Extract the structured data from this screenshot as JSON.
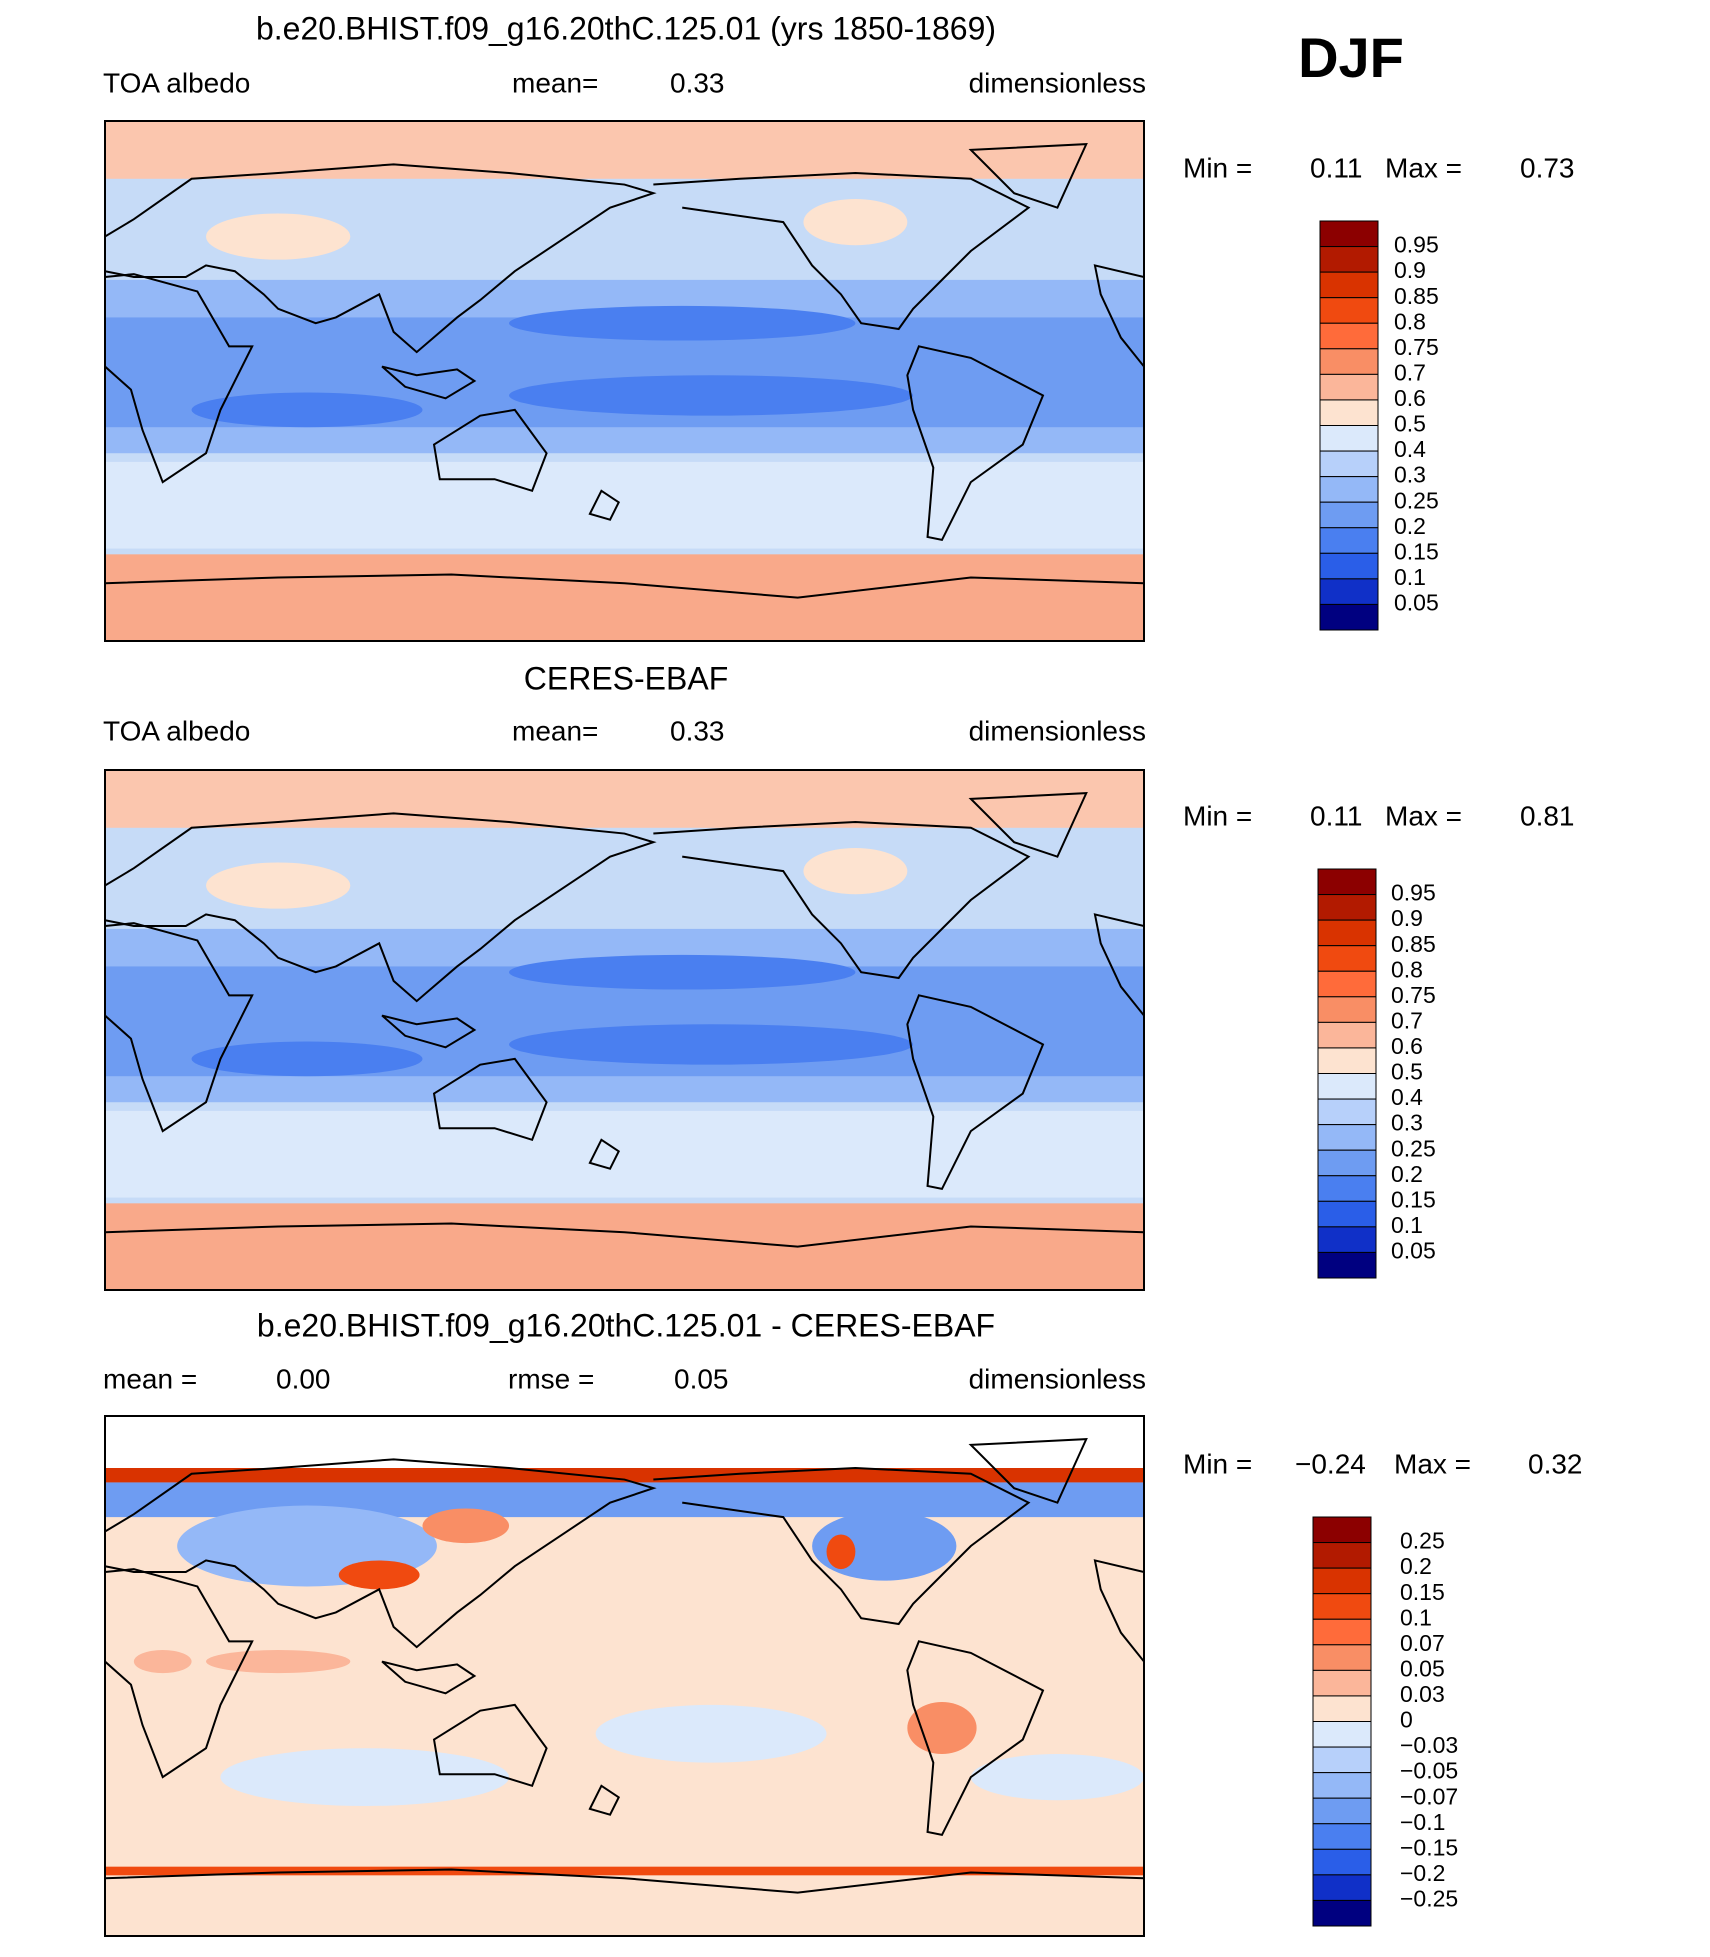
{
  "season": "DJF",
  "panels": [
    {
      "title": "b.e20.BHIST.f09_g16.20thC.125.01 (yrs 1850-1869)",
      "variable": "TOA albedo",
      "mean_label": "mean=",
      "mean": 0.33,
      "units": "dimensionless",
      "min_label": "Min =",
      "min": 0.11,
      "max_label": "Max =",
      "max": 0.73,
      "colorbar": {
        "levels": [
          0.95,
          0.9,
          0.85,
          0.8,
          0.75,
          0.7,
          0.6,
          0.5,
          0.4,
          0.3,
          0.25,
          0.2,
          0.15,
          0.1,
          0.05
        ],
        "colors": [
          "#8c0000",
          "#b21a00",
          "#d93300",
          "#f04a10",
          "#ff6b3a",
          "#f98e65",
          "#fbb69a",
          "#fde3d0",
          "#dbe9fb",
          "#b7d0fa",
          "#94b8f7",
          "#6e9cf2",
          "#4a7ff0",
          "#2a5ee8",
          "#1030c8",
          "#000080"
        ]
      }
    },
    {
      "title": "CERES-EBAF",
      "variable": "TOA albedo",
      "mean_label": "mean=",
      "mean": 0.33,
      "units": "dimensionless",
      "min_label": "Min =",
      "min": 0.11,
      "max_label": "Max =",
      "max": 0.81,
      "colorbar": {
        "levels": [
          0.95,
          0.9,
          0.85,
          0.8,
          0.75,
          0.7,
          0.6,
          0.5,
          0.4,
          0.3,
          0.25,
          0.2,
          0.15,
          0.1,
          0.05
        ],
        "colors": [
          "#8c0000",
          "#b21a00",
          "#d93300",
          "#f04a10",
          "#ff6b3a",
          "#f98e65",
          "#fbb69a",
          "#fde3d0",
          "#dbe9fb",
          "#b7d0fa",
          "#94b8f7",
          "#6e9cf2",
          "#4a7ff0",
          "#2a5ee8",
          "#1030c8",
          "#000080"
        ]
      }
    },
    {
      "title": "b.e20.BHIST.f09_g16.20thC.125.01 - CERES-EBAF",
      "mean_label": "mean =",
      "mean": {
        "value": 0,
        "label": "0.00"
      },
      "rmse_label": "rmse =",
      "rmse": 0.05,
      "units": "dimensionless",
      "min_label": "Min =",
      "min": {
        "value": -0.24,
        "label": "−0.24"
      },
      "max_label": "Max =",
      "max": 0.32,
      "colorbar": {
        "levels": [
          0.25,
          0.2,
          0.15,
          0.1,
          0.07,
          0.05,
          0.03,
          0,
          {
            "value": -0.03,
            "label": "−0.03"
          },
          {
            "value": -0.05,
            "label": "−0.05"
          },
          {
            "value": -0.07,
            "label": "−0.07"
          },
          {
            "value": -0.1,
            "label": "−0.1"
          },
          {
            "value": -0.15,
            "label": "−0.15"
          },
          {
            "value": -0.2,
            "label": "−0.2"
          },
          {
            "value": -0.25,
            "label": "−0.25"
          }
        ],
        "colors": [
          "#8c0000",
          "#b21a00",
          "#d93300",
          "#f04a10",
          "#ff6b3a",
          "#f98e65",
          "#fbb69a",
          "#fde3d0",
          "#dbe9fb",
          "#b7d0fa",
          "#94b8f7",
          "#6e9cf2",
          "#4a7ff0",
          "#2a5ee8",
          "#1030c8",
          "#000080"
        ]
      }
    }
  ]
}
